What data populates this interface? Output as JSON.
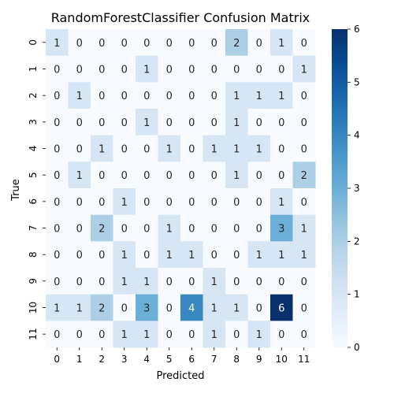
{
  "chart_data": {
    "type": "heatmap",
    "title": "RandomForestClassifier Confusion Matrix",
    "xlabel": "Predicted",
    "ylabel": "True",
    "x_categories": [
      "0",
      "1",
      "2",
      "3",
      "4",
      "5",
      "6",
      "7",
      "8",
      "9",
      "10",
      "11"
    ],
    "y_categories": [
      "0",
      "1",
      "2",
      "3",
      "4",
      "5",
      "6",
      "7",
      "8",
      "9",
      "10",
      "11"
    ],
    "values": [
      [
        1,
        0,
        0,
        0,
        0,
        0,
        0,
        0,
        2,
        0,
        1,
        0
      ],
      [
        0,
        0,
        0,
        0,
        1,
        0,
        0,
        0,
        0,
        0,
        0,
        1
      ],
      [
        0,
        1,
        0,
        0,
        0,
        0,
        0,
        0,
        1,
        1,
        1,
        0
      ],
      [
        0,
        0,
        0,
        0,
        1,
        0,
        0,
        0,
        1,
        0,
        0,
        0
      ],
      [
        0,
        0,
        1,
        0,
        0,
        1,
        0,
        1,
        1,
        1,
        0,
        0
      ],
      [
        0,
        1,
        0,
        0,
        0,
        0,
        0,
        0,
        1,
        0,
        0,
        2
      ],
      [
        0,
        0,
        0,
        1,
        0,
        0,
        0,
        0,
        0,
        0,
        1,
        0
      ],
      [
        0,
        0,
        2,
        0,
        0,
        1,
        0,
        0,
        0,
        0,
        3,
        1
      ],
      [
        0,
        0,
        0,
        1,
        0,
        1,
        1,
        0,
        0,
        1,
        1,
        1
      ],
      [
        0,
        0,
        0,
        1,
        1,
        0,
        0,
        1,
        0,
        0,
        0,
        0
      ],
      [
        1,
        1,
        2,
        0,
        3,
        0,
        4,
        1,
        1,
        0,
        6,
        0
      ],
      [
        0,
        0,
        0,
        1,
        1,
        0,
        0,
        1,
        0,
        1,
        0,
        0
      ]
    ],
    "colorbar": {
      "min": 0,
      "max": 6,
      "ticks": [
        0,
        1,
        2,
        3,
        4,
        5,
        6
      ]
    },
    "colormap": "Blues",
    "colormap_low": "#f7fbff",
    "colormap_high": "#08306b"
  }
}
